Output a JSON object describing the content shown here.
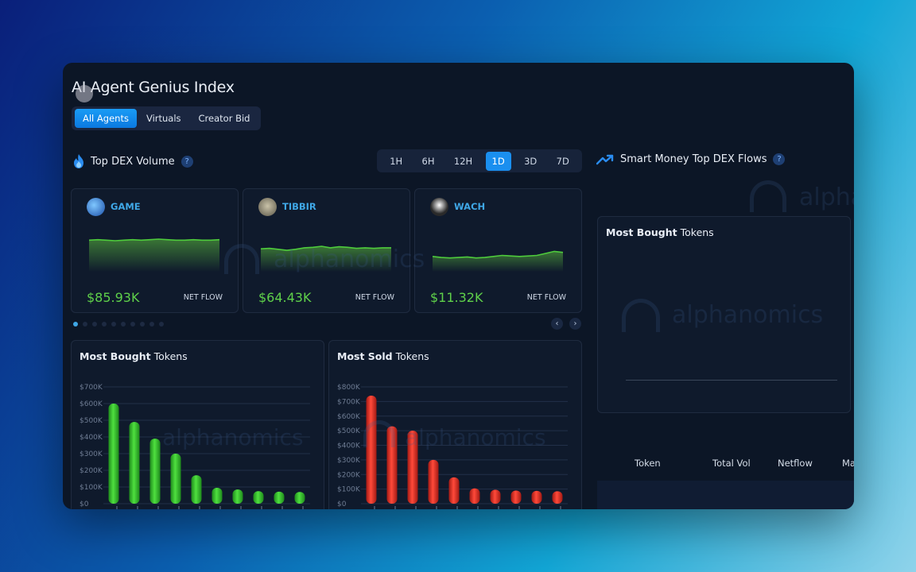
{
  "app": {
    "title": "AI Agent Genius Index",
    "tabs": [
      {
        "label": "All Agents",
        "active": true
      },
      {
        "label": "Virtuals",
        "active": false
      },
      {
        "label": "Creator Bid",
        "active": false
      }
    ]
  },
  "dex_volume": {
    "title": "Top DEX Volume",
    "help": "?",
    "timeframes": [
      {
        "label": "1H",
        "active": false
      },
      {
        "label": "6H",
        "active": false
      },
      {
        "label": "12H",
        "active": false
      },
      {
        "label": "1D",
        "active": true
      },
      {
        "label": "3D",
        "active": false
      },
      {
        "label": "7D",
        "active": false
      }
    ],
    "cards": [
      {
        "name": "GAME",
        "value": "$85.93K",
        "label": "NET FLOW",
        "spark": [
          0.62,
          0.63,
          0.62,
          0.61,
          0.62,
          0.63,
          0.62,
          0.63,
          0.64,
          0.63,
          0.62,
          0.62,
          0.63,
          0.62,
          0.62,
          0.63
        ]
      },
      {
        "name": "TIBBIR",
        "value": "$64.43K",
        "label": "NET FLOW",
        "spark": [
          0.45,
          0.46,
          0.44,
          0.42,
          0.44,
          0.47,
          0.48,
          0.5,
          0.47,
          0.49,
          0.48,
          0.46,
          0.47,
          0.46,
          0.47,
          0.47
        ]
      },
      {
        "name": "WACH",
        "value": "$11.32K",
        "label": "NET FLOW",
        "spark": [
          0.3,
          0.28,
          0.27,
          0.28,
          0.29,
          0.27,
          0.28,
          0.3,
          0.32,
          0.31,
          0.3,
          0.31,
          0.32,
          0.36,
          0.4,
          0.38
        ]
      }
    ],
    "pagination": {
      "count": 10,
      "active": 0
    }
  },
  "most_bought": {
    "title_bold": "Most Bought",
    "title_light": " Tokens",
    "chart_data": {
      "type": "bar",
      "ylim": [
        0,
        700000
      ],
      "yticks": [
        "$0",
        "$100K",
        "$200K",
        "$300K",
        "$400K",
        "$500K",
        "$600K",
        "$700K"
      ],
      "values": [
        600000,
        490000,
        390000,
        300000,
        170000,
        95000,
        85000,
        75000,
        72000,
        70000
      ],
      "color": "#3fcf3a"
    }
  },
  "most_sold": {
    "title_bold": "Most Sold",
    "title_light": " Tokens",
    "chart_data": {
      "type": "bar",
      "ylim": [
        0,
        800000
      ],
      "yticks": [
        "$0",
        "$100K",
        "$200K",
        "$300K",
        "$400K",
        "$500K",
        "$600K",
        "$700K",
        "$800K"
      ],
      "values": [
        740000,
        530000,
        500000,
        300000,
        180000,
        105000,
        95000,
        90000,
        88000,
        85000
      ],
      "color": "#e6332a"
    }
  },
  "smart_money": {
    "title": "Smart Money Top DEX Flows",
    "help": "?",
    "panel_title_bold": "Most Bought",
    "panel_title_light": " Tokens",
    "table_headers": [
      "Token",
      "Total Vol",
      "Netflow",
      "Ma"
    ]
  },
  "watermark": "alphanomics",
  "nav": {
    "prev": "‹",
    "next": "›"
  }
}
